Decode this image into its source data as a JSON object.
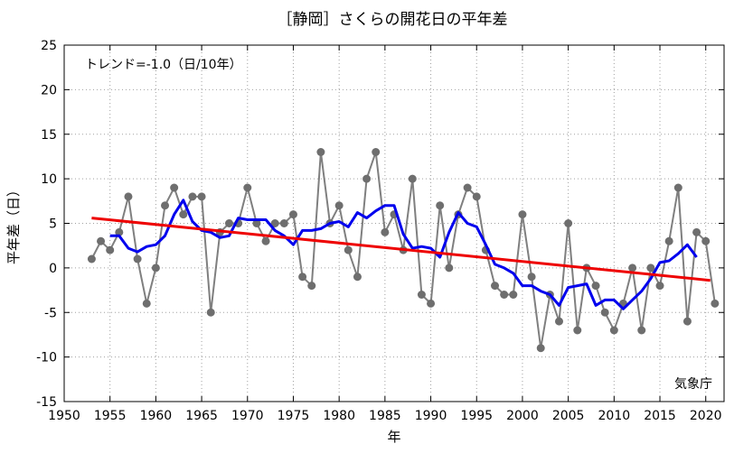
{
  "chart_data": {
    "type": "line",
    "title": "［静岡］さくらの開花日の平年差",
    "xlabel": "年",
    "ylabel": "平年差（日）",
    "xlim": [
      1950,
      2022
    ],
    "ylim": [
      -15,
      25
    ],
    "x_ticks": [
      1950,
      1955,
      1960,
      1965,
      1970,
      1975,
      1980,
      1985,
      1990,
      1995,
      2000,
      2005,
      2010,
      2015,
      2020
    ],
    "y_ticks": [
      -15,
      -10,
      -5,
      0,
      5,
      10,
      15,
      20,
      25
    ],
    "grid": true,
    "trend_label": "トレンド=-1.0（日/10年）",
    "source_label": "気象庁",
    "series": [
      {
        "kind": "annual",
        "color": "#7f7f7f",
        "marker_color": "#6e6e6e",
        "x": [
          1953,
          1954,
          1955,
          1956,
          1957,
          1958,
          1959,
          1960,
          1961,
          1962,
          1963,
          1964,
          1965,
          1966,
          1967,
          1968,
          1969,
          1970,
          1971,
          1972,
          1973,
          1974,
          1975,
          1976,
          1977,
          1978,
          1979,
          1980,
          1981,
          1982,
          1983,
          1984,
          1985,
          1986,
          1987,
          1988,
          1989,
          1990,
          1991,
          1992,
          1993,
          1994,
          1995,
          1996,
          1997,
          1998,
          1999,
          2000,
          2001,
          2002,
          2003,
          2004,
          2005,
          2006,
          2007,
          2008,
          2009,
          2010,
          2011,
          2012,
          2013,
          2014,
          2015,
          2016,
          2017,
          2018,
          2019,
          2020,
          2021
        ],
        "y": [
          1,
          3,
          2,
          4,
          8,
          1,
          -4,
          0,
          7,
          9,
          6,
          8,
          8,
          -5,
          4,
          5,
          5,
          9,
          5,
          3,
          5,
          5,
          6,
          -1,
          -2,
          13,
          5,
          7,
          2,
          -1,
          10,
          13,
          4,
          6,
          2,
          10,
          -3,
          -4,
          7,
          0,
          6,
          9,
          8,
          2,
          -2,
          -3,
          -3,
          6,
          -1,
          -9,
          -3,
          -6,
          5,
          -7,
          0,
          -2,
          -5,
          -7,
          -4,
          0,
          -7,
          0,
          -2,
          3,
          9,
          -6,
          4,
          3,
          -4
        ]
      },
      {
        "kind": "moving_average",
        "color": "#0000ee",
        "x": [
          1955,
          1956,
          1957,
          1958,
          1959,
          1960,
          1961,
          1962,
          1963,
          1964,
          1965,
          1966,
          1967,
          1968,
          1969,
          1970,
          1971,
          1972,
          1973,
          1974,
          1975,
          1976,
          1977,
          1978,
          1979,
          1980,
          1981,
          1982,
          1983,
          1984,
          1985,
          1986,
          1987,
          1988,
          1989,
          1990,
          1991,
          1992,
          1993,
          1994,
          1995,
          1996,
          1997,
          1998,
          1999,
          2000,
          2001,
          2002,
          2003,
          2004,
          2005,
          2006,
          2007,
          2008,
          2009,
          2010,
          2011,
          2012,
          2013,
          2014,
          2015,
          2016,
          2017,
          2018,
          2019
        ],
        "y": [
          3.6,
          3.6,
          2.2,
          1.8,
          2.4,
          2.6,
          3.6,
          6.0,
          7.6,
          5.2,
          4.2,
          4.0,
          3.4,
          3.6,
          5.6,
          5.4,
          5.4,
          5.4,
          4.2,
          3.6,
          2.6,
          4.2,
          4.2,
          4.4,
          5.0,
          5.2,
          4.6,
          6.2,
          5.6,
          6.4,
          7.0,
          7.0,
          3.8,
          2.2,
          2.4,
          2.2,
          1.2,
          4.0,
          6.2,
          5.0,
          4.6,
          2.6,
          0.4,
          0.0,
          -0.6,
          -2.0,
          -2.0,
          -2.6,
          -3.0,
          -4.2,
          -2.2,
          -2.0,
          -1.8,
          -4.2,
          -3.6,
          -3.6,
          -4.6,
          -3.6,
          -2.6,
          -1.2,
          0.6,
          0.8,
          1.6,
          2.6,
          1.2
        ]
      },
      {
        "kind": "trend",
        "color": "#ee0000",
        "x": [
          1953,
          2020.5
        ],
        "y": [
          5.6,
          -1.4
        ]
      }
    ]
  }
}
